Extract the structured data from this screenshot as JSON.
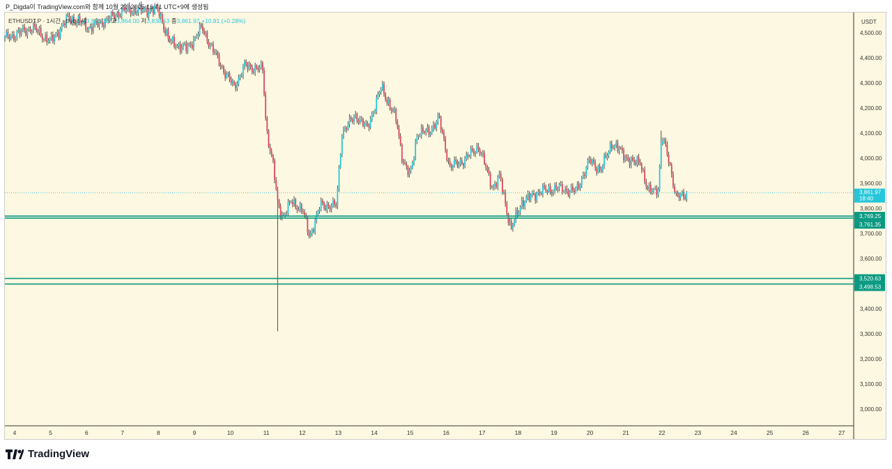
{
  "caption": "P_Digda이 TradingView.com와 함께 10월 22, 2025 16:41 UTC+9에 생성됨",
  "legend": {
    "symbol": "ETHUSDT.P · 1시간 · Bybit",
    "open_label": "시",
    "open": "3,851.16",
    "high_label": "고",
    "high": "3,864.00",
    "low_label": "저",
    "low": "3,838.53",
    "close_label": "종",
    "close": "3,861.97",
    "change": "+10.81 (+0.28%)"
  },
  "currency": "USDT",
  "current_price_tag": {
    "price": "3,861.97",
    "countdown": "18:40"
  },
  "logo_text": "TradingView",
  "colors": {
    "up": "#26c6da",
    "down": "#e0455a",
    "level": "#089981",
    "bg": "#fdf8e1"
  },
  "chart_data": {
    "type": "candlestick",
    "timeframe": "1h",
    "x_ticks": [
      "4",
      "5",
      "6",
      "7",
      "8",
      "9",
      "10",
      "11",
      "12",
      "13",
      "14",
      "15",
      "16",
      "17",
      "18",
      "19",
      "20",
      "21",
      "22",
      "23",
      "24",
      "25",
      "26",
      "27"
    ],
    "y_ticks": [
      "4,500.00",
      "4,400.00",
      "4,300.00",
      "4,200.00",
      "4,100.00",
      "4,000.00",
      "3,900.00",
      "3,800.00",
      "3,700.00",
      "3,600.00",
      "3,400.00",
      "3,300.00",
      "3,200.00",
      "3,100.00",
      "3,000.00"
    ],
    "y_range": [
      2920,
      4585
    ],
    "x_range_days": [
      3.73,
      27.4
    ],
    "price_path": [
      [
        3.73,
        4478
      ],
      [
        4.5,
        4520
      ],
      [
        5.0,
        4464
      ],
      [
        5.5,
        4561
      ],
      [
        6.1,
        4520
      ],
      [
        6.7,
        4560
      ],
      [
        7.0,
        4590
      ],
      [
        8.0,
        4590
      ],
      [
        8.3,
        4464
      ],
      [
        8.8,
        4436
      ],
      [
        9.2,
        4520
      ],
      [
        9.5,
        4436
      ],
      [
        9.8,
        4353
      ],
      [
        10.1,
        4283
      ],
      [
        10.4,
        4367
      ],
      [
        10.9,
        4353
      ],
      [
        11.0,
        4117
      ],
      [
        11.2,
        3964
      ],
      [
        11.3,
        3825
      ],
      [
        11.45,
        3769
      ],
      [
        11.7,
        3825
      ],
      [
        12.0,
        3797
      ],
      [
        12.2,
        3686
      ],
      [
        12.5,
        3811
      ],
      [
        12.95,
        3811
      ],
      [
        13.1,
        4103
      ],
      [
        13.5,
        4172
      ],
      [
        13.8,
        4117
      ],
      [
        14.2,
        4283
      ],
      [
        14.6,
        4158
      ],
      [
        14.8,
        3992
      ],
      [
        15.0,
        3925
      ],
      [
        15.2,
        4103
      ],
      [
        15.5,
        4103
      ],
      [
        15.8,
        4158
      ],
      [
        16.1,
        3964
      ],
      [
        16.5,
        3992
      ],
      [
        16.9,
        4047
      ],
      [
        17.3,
        3881
      ],
      [
        17.5,
        3925
      ],
      [
        17.8,
        3714
      ],
      [
        18.1,
        3825
      ],
      [
        18.6,
        3867
      ],
      [
        19.1,
        3881
      ],
      [
        19.6,
        3867
      ],
      [
        20.0,
        3992
      ],
      [
        20.3,
        3950
      ],
      [
        20.6,
        4061
      ],
      [
        21.0,
        4006
      ],
      [
        21.2,
        3978
      ],
      [
        21.4,
        3992
      ],
      [
        21.6,
        3867
      ],
      [
        21.9,
        3881
      ],
      [
        22.0,
        4089
      ],
      [
        22.2,
        3992
      ],
      [
        22.4,
        3839
      ],
      [
        22.7,
        3861.97
      ]
    ],
    "spike_low": {
      "day": 11.3,
      "price": 3310
    },
    "spike_high": {
      "day": 22.0,
      "price": 4110
    },
    "current_price": 3861.97,
    "levels": [
      {
        "price": 3769.25,
        "label": "3,769.25"
      },
      {
        "price": 3761.35,
        "label": "3,761.35"
      },
      {
        "price": 3520.63,
        "label": "3,520.63"
      },
      {
        "price": 3498.53,
        "label": "3,498.53"
      }
    ]
  }
}
